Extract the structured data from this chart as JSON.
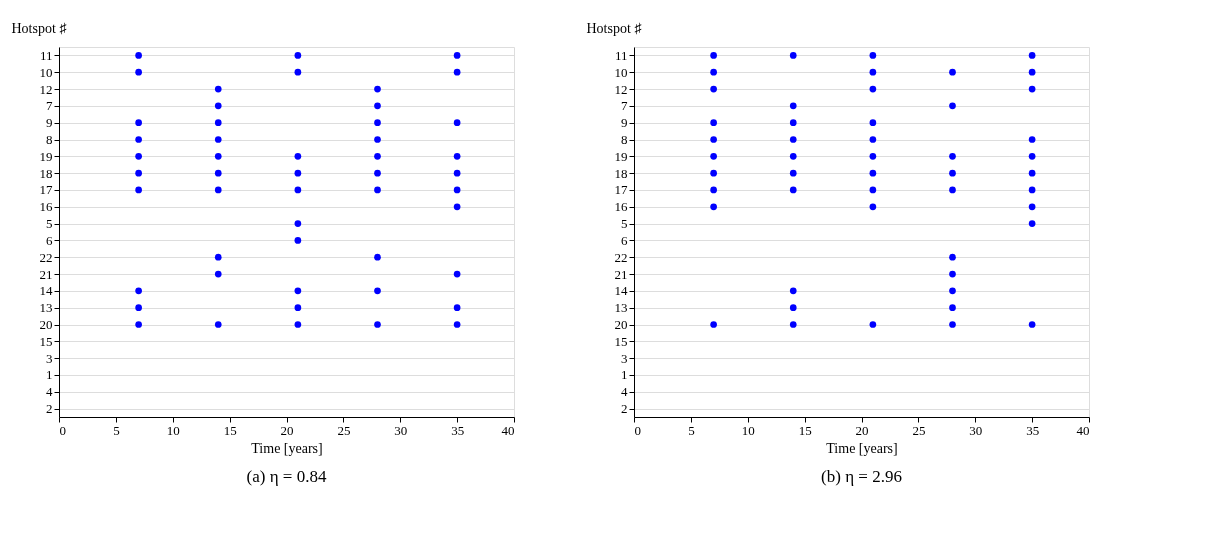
{
  "chart_data": [
    {
      "type": "scatter",
      "orientation": "horizontal",
      "title": "(a) η = 0.84",
      "xlabel": "Time [years]",
      "ylabel": "Hotspot ♯",
      "xlim": [
        0,
        40
      ],
      "xticks": [
        0,
        5,
        10,
        15,
        20,
        25,
        30,
        35,
        40
      ],
      "grid": "y",
      "marker": "circle",
      "categories": [
        "11",
        "10",
        "12",
        "7",
        "9",
        "8",
        "19",
        "18",
        "17",
        "16",
        "5",
        "6",
        "22",
        "21",
        "14",
        "13",
        "20",
        "15",
        "3",
        "1",
        "4",
        "2"
      ],
      "series": [
        {
          "color": "#0000ff",
          "values": [
            7,
            7,
            null,
            null,
            7,
            7,
            7,
            7,
            7,
            null,
            null,
            null,
            null,
            null,
            7,
            7,
            7,
            null,
            null,
            null,
            null,
            null
          ]
        },
        {
          "color": "#0000ff",
          "values": [
            null,
            null,
            14,
            14,
            14,
            14,
            14,
            14,
            14,
            null,
            null,
            null,
            14,
            14,
            null,
            null,
            14,
            null,
            null,
            null,
            null,
            null
          ]
        },
        {
          "color": "#0000ff",
          "values": [
            21,
            21,
            null,
            null,
            null,
            null,
            21,
            21,
            21,
            null,
            21,
            21,
            null,
            null,
            21,
            21,
            21,
            null,
            null,
            null,
            null,
            null
          ]
        },
        {
          "color": "#0000ff",
          "values": [
            null,
            null,
            28,
            28,
            28,
            28,
            28,
            28,
            28,
            null,
            null,
            null,
            28,
            null,
            28,
            null,
            28,
            null,
            null,
            null,
            null,
            null
          ]
        },
        {
          "color": "#0000ff",
          "values": [
            35,
            35,
            null,
            null,
            35,
            null,
            35,
            35,
            35,
            35,
            null,
            null,
            null,
            35,
            null,
            35,
            35,
            null,
            null,
            null,
            null,
            null
          ]
        }
      ]
    },
    {
      "type": "scatter",
      "orientation": "horizontal",
      "title": "(b) η = 2.96",
      "xlabel": "Time [years]",
      "ylabel": "Hotspot ♯",
      "xlim": [
        0,
        40
      ],
      "xticks": [
        0,
        5,
        10,
        15,
        20,
        25,
        30,
        35,
        40
      ],
      "grid": "y",
      "marker": "circle",
      "categories": [
        "11",
        "10",
        "12",
        "7",
        "9",
        "8",
        "19",
        "18",
        "17",
        "16",
        "5",
        "6",
        "22",
        "21",
        "14",
        "13",
        "20",
        "15",
        "3",
        "1",
        "4",
        "2"
      ],
      "series": [
        {
          "color": "#0000ff",
          "values": [
            7,
            7,
            7,
            null,
            7,
            7,
            7,
            7,
            7,
            7,
            null,
            null,
            null,
            null,
            null,
            null,
            7,
            null,
            null,
            null,
            null,
            null
          ]
        },
        {
          "color": "#0000ff",
          "values": [
            14,
            null,
            null,
            14,
            14,
            14,
            14,
            14,
            14,
            null,
            null,
            null,
            null,
            null,
            14,
            14,
            14,
            null,
            null,
            null,
            null,
            null
          ]
        },
        {
          "color": "#0000ff",
          "values": [
            21,
            21,
            21,
            null,
            21,
            21,
            21,
            21,
            21,
            21,
            null,
            null,
            null,
            null,
            null,
            null,
            21,
            null,
            null,
            null,
            null,
            null
          ]
        },
        {
          "color": "#0000ff",
          "values": [
            null,
            28,
            null,
            28,
            null,
            null,
            28,
            28,
            28,
            null,
            null,
            null,
            28,
            28,
            28,
            28,
            28,
            null,
            null,
            null,
            null,
            null
          ]
        },
        {
          "color": "#0000ff",
          "values": [
            35,
            35,
            35,
            null,
            null,
            35,
            35,
            35,
            35,
            35,
            35,
            null,
            null,
            null,
            null,
            null,
            35,
            null,
            null,
            null,
            null,
            null
          ]
        }
      ]
    }
  ]
}
